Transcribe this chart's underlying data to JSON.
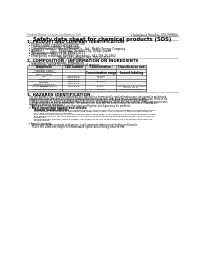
{
  "bg_color": "#ffffff",
  "header_left": "Product Name: Lithium Ion Battery Cell",
  "header_right_line1": "Substance Number: STP36NF03L",
  "header_right_line2": "Established / Revision: Dec.7.2009",
  "title": "Safety data sheet for chemical products (SDS)",
  "section1_title": "1. PRODUCT AND COMPANY IDENTIFICATION",
  "section1_lines": [
    "  • Product name: Lithium Ion Battery Cell",
    "  • Product code: Cylindrical-type cell",
    "       SYI 86500, SYI 88500, SYI 86500A",
    "  • Company name:     Sanyo Electric Co., Ltd., Mobile Energy Company",
    "  • Address:        2001  Kamikawa, Sumoto-City, Hyogo, Japan",
    "  • Telephone number:   +81-799-26-4111",
    "  • Fax number:  +81-799-26-4120",
    "  • Emergency telephone number (Weekday): +81-799-26-3662",
    "                                   (Night and holiday): +81-799-26-4101"
  ],
  "section2_title": "2. COMPOSITION / INFORMATION ON INGREDIENTS",
  "section2_sub": "  • Substance or preparation: Preparation",
  "section2_sub2": "  • Information about the chemical nature of product:",
  "table_headers": [
    "Component",
    "CAS number",
    "Concentration /\nConcentration range",
    "Classification and\nhazard labeling"
  ],
  "table_col1": [
    "Chemical name /\nGeneric name",
    "Lithium cobalt oxide\n(LiMn₂CoNiO₂)",
    "Iron",
    "Aluminum",
    "Graphite\n(Baked graphite-1)\n(Artificial graphite-1)",
    "Copper",
    "Organic electrolyte"
  ],
  "table_col2": [
    "",
    "",
    "7439-89-6\n74209-90-8",
    "7429-90-5",
    "7782-42-5\n7782-44-0",
    "7440-50-8",
    ""
  ],
  "table_col3": [
    "",
    "30-60%",
    "15-25%\n2-5%",
    "",
    "10-20%",
    "5-15%",
    "10-20%"
  ],
  "table_col4": [
    "",
    "",
    "-",
    "-",
    "-",
    "Sensitization of the skin\ngroup No.2",
    "Inflammable liquid"
  ],
  "section3_title": "3. HAZARDS IDENTIFICATION",
  "section3_para1": "   For the battery cell, chemical materials are stored in a hermetically-sealed metal case, designed to withstand\n   temperatures to prevent electrolyte combustion during normal use. As a result, during normal use, there is no\n   physical danger of ignition or explosion and there is no danger of hazardous materials leakage.\n      When exposed to a fire, added mechanical shocks, decomposed, when electro-internal chemistry reacts use,\n   the gas release ventral be operated. The battery cell case will be breached at the extreme. Hazardous\n   materials may be released.\n      Moreover, if heated strongly by the surrounding fire, solid gas may be emitted.",
  "section3_sub1": "  • Most important hazard and effects:",
  "section3_sub2": "       Human health effects:",
  "section3_body": "         Inhalation: The release of the electrolyte has an anesthesia action and stimulates in respiratory tract.\n         Skin contact: The release of the electrolyte stimulates a skin. The electrolyte skin contact causes a\n         sore and stimulation on the skin.\n         Eye contact: The release of the electrolyte stimulates eyes. The electrolyte eye contact causes a sore\n         and stimulation on the eye. Especially, a substance that causes a strong inflammation of the eyes is\n         contained.\n         Environmental effects: Since a battery cell remains to the environment, do not throw out it into the\n         environment.",
  "section3_specific": "  • Specific hazards:\n       If the electrolyte contacts with water, it will generate detrimental hydrogen fluoride.\n       Since the used electrolyte is inflammable liquid, do not bring close to fire."
}
